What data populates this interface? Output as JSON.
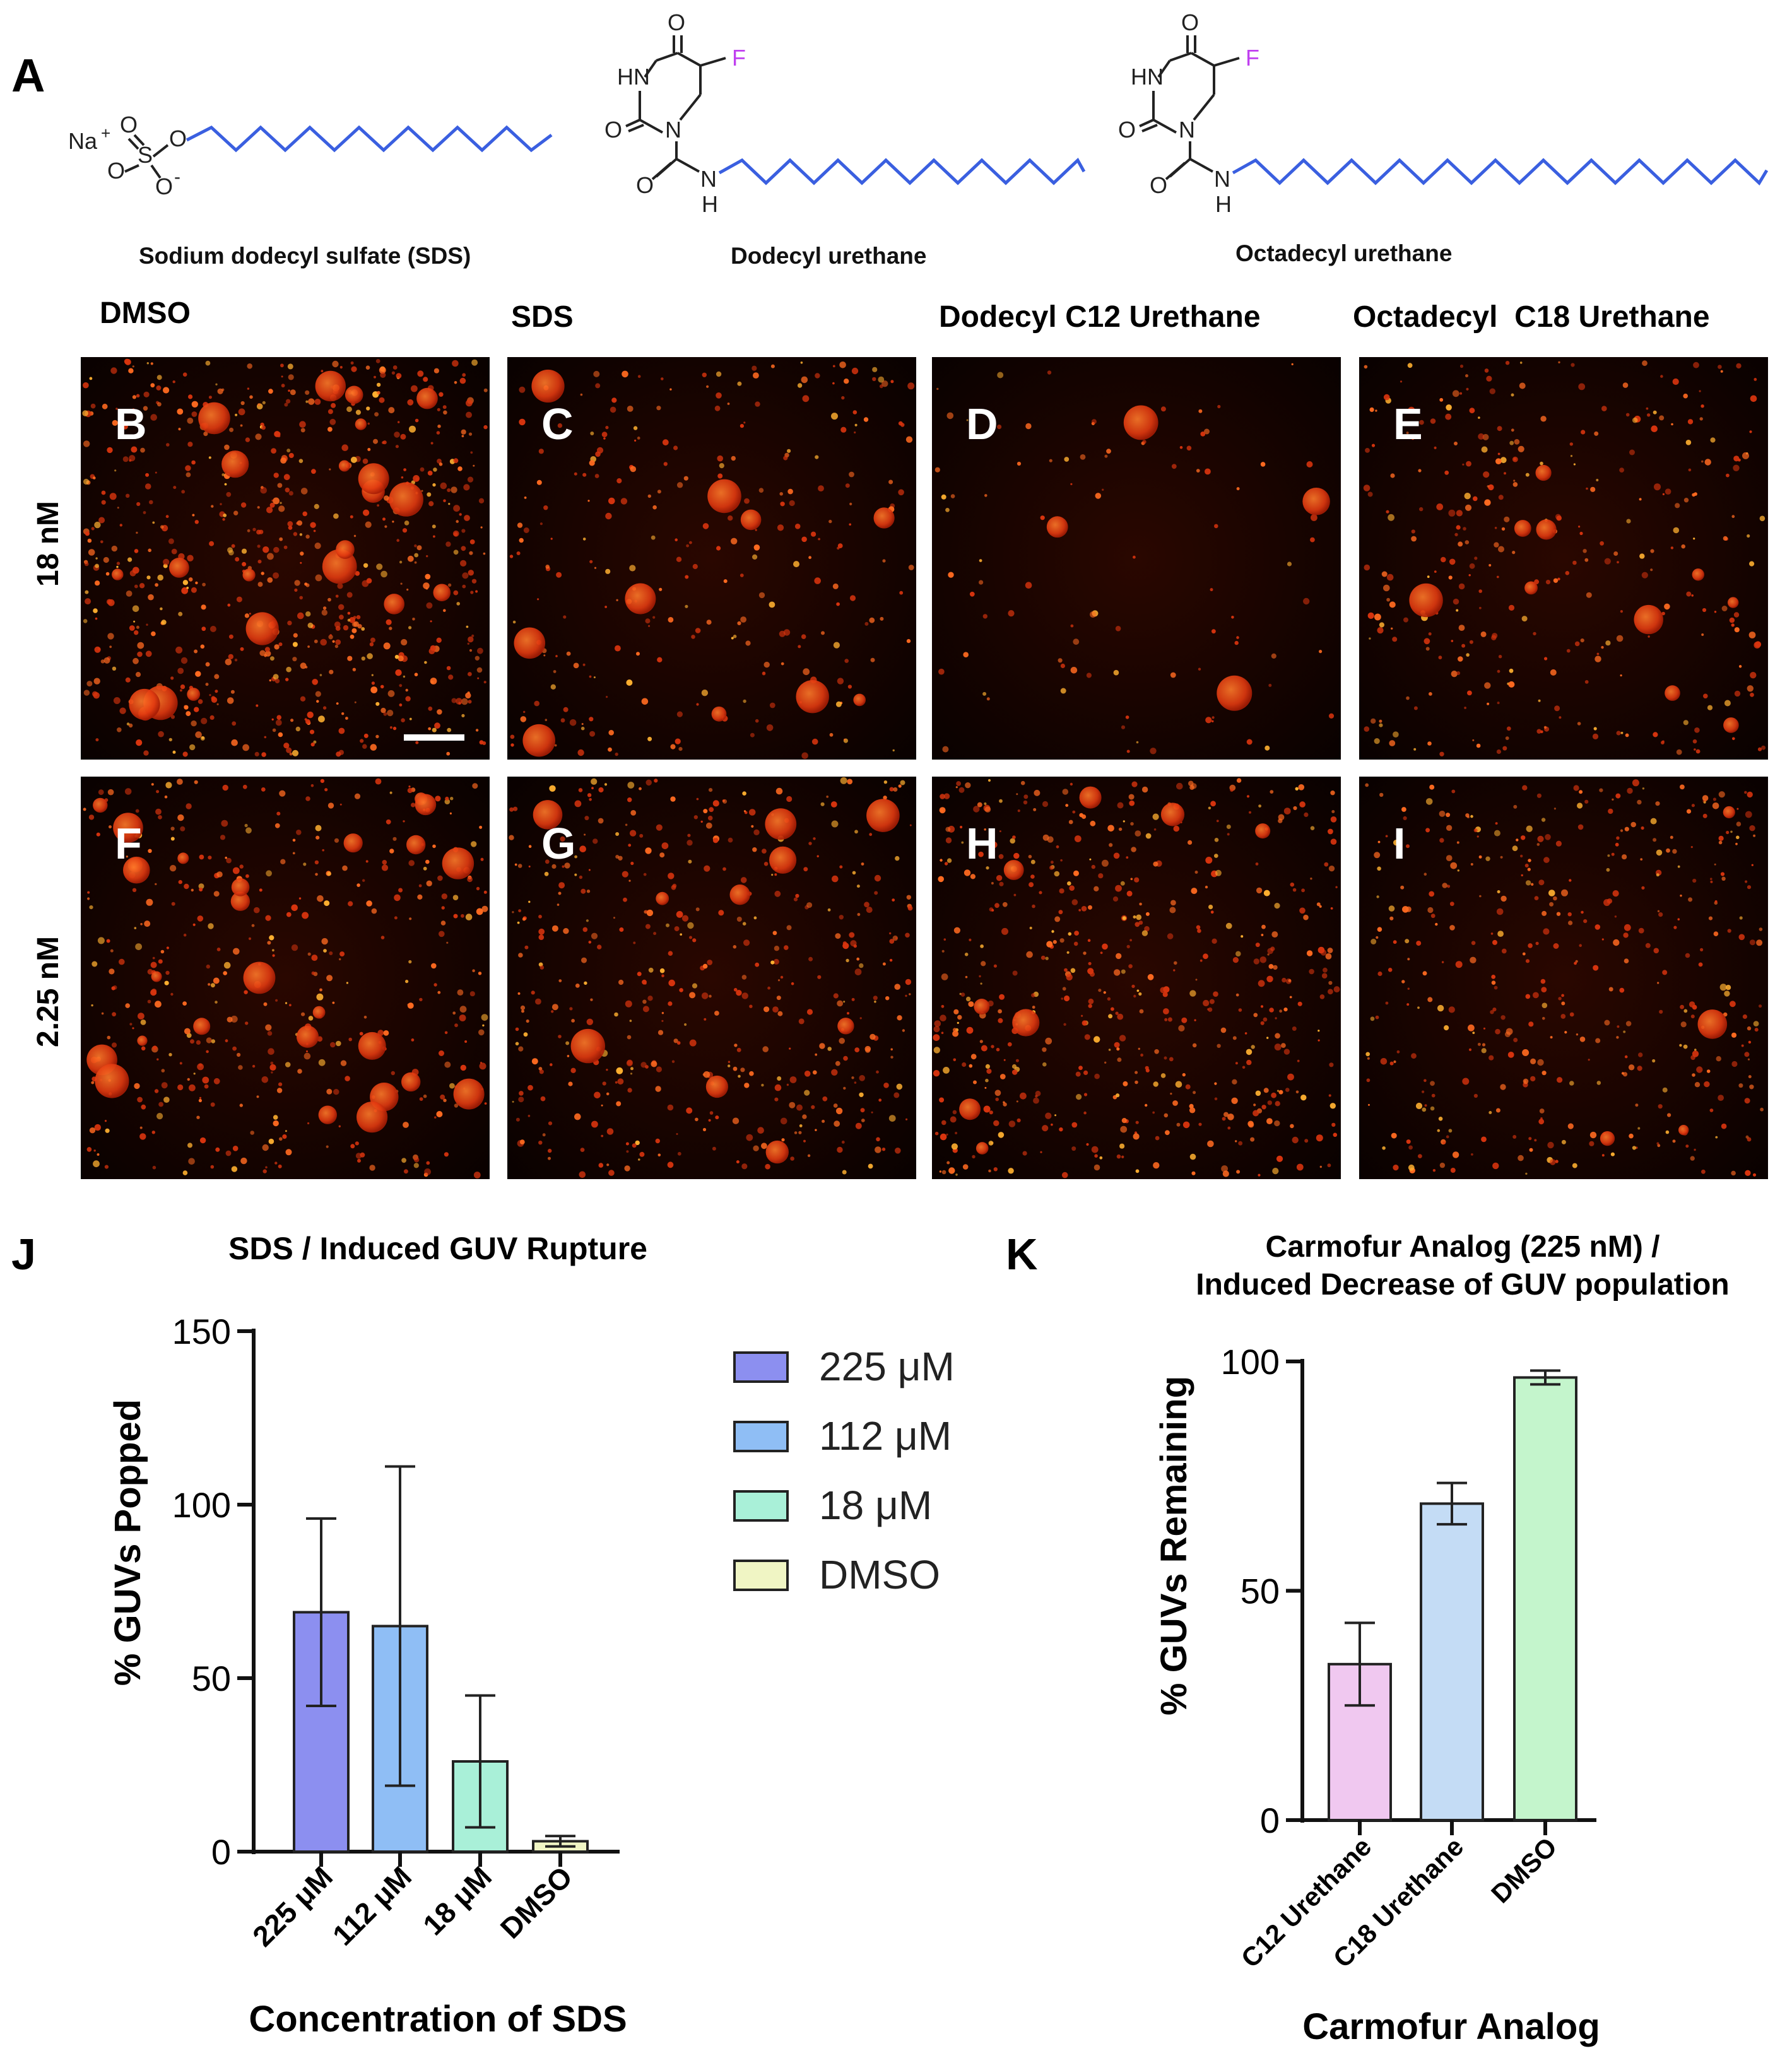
{
  "panel_letters": [
    "A",
    "B",
    "C",
    "D",
    "E",
    "F",
    "G",
    "H",
    "I",
    "J",
    "K"
  ],
  "structures": {
    "sds": {
      "caption": "Sodium dodecyl sulfate (SDS)",
      "atoms": {
        "na": "Na",
        "plus": "+",
        "o": "O",
        "s": "S",
        "minus": "-"
      }
    },
    "dodecyl": {
      "caption": "Dodecyl urethane",
      "atoms": {
        "o": "O",
        "hn": "HN",
        "n": "N",
        "f": "F",
        "nh_n": "N",
        "nh_h": "H"
      }
    },
    "octadecyl": {
      "caption": "Octadecyl urethane",
      "atoms": {
        "o": "O",
        "hn": "HN",
        "n": "N",
        "f": "F",
        "nh_n": "N",
        "nh_h": "H"
      }
    },
    "chain_color": "#3a5fe0",
    "fluorine_color": "#c040f0"
  },
  "microscopy": {
    "column_headers": [
      "DMSO",
      "SDS",
      "Dodecyl C12 Urethane",
      "Octadecyl  C18 Urethane"
    ],
    "row_headers": [
      "18 nM",
      "2.25 nM"
    ],
    "panel_labels": [
      [
        "B",
        "C",
        "D",
        "E"
      ],
      [
        "F",
        "G",
        "H",
        "I"
      ]
    ]
  },
  "chart_data": [
    {
      "panel": "J",
      "type": "bar",
      "title": "SDS / Induced GUV Rupture",
      "xlabel": "Concentration of SDS",
      "ylabel": "% GUVs Popped",
      "ylim": [
        0,
        150
      ],
      "yticks": [
        0,
        50,
        100,
        150
      ],
      "categories": [
        "225 μM",
        "112 μM",
        "18 μM",
        "DMSO"
      ],
      "values": [
        69,
        65,
        26,
        3
      ],
      "errors": [
        27,
        46,
        19,
        1.5
      ],
      "colors": [
        "#8c8ff0",
        "#8fbef5",
        "#a9f0d8",
        "#f0f5c4"
      ],
      "legend": {
        "placement": "right",
        "entries": [
          "225 μM",
          "112 μM",
          "18 μM",
          "DMSO"
        ]
      }
    },
    {
      "panel": "K",
      "type": "bar",
      "title": "Carmofur Analog (225 nM) /",
      "title_line2": "Induced Decrease of GUV population",
      "xlabel": "Carmofur Analog",
      "ylabel": "% GUVs Remaining",
      "ylim": [
        0,
        100
      ],
      "yticks": [
        0,
        50,
        100
      ],
      "categories": [
        "C12 Urethane",
        "C18 Urethane",
        "DMSO"
      ],
      "values": [
        34,
        69,
        96.5
      ],
      "errors": [
        9,
        4.5,
        1.5
      ],
      "colors": [
        "#f0c8f0",
        "#c4dcf5",
        "#c4f5cc"
      ]
    }
  ]
}
